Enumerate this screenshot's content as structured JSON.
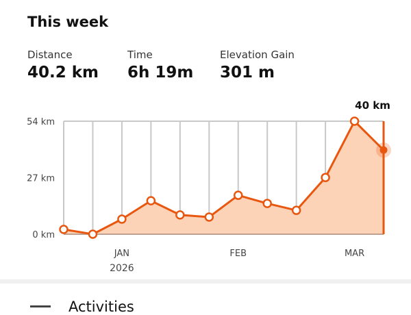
{
  "header": {
    "title": "This week"
  },
  "stats": [
    {
      "label": "Distance",
      "value": "40.2 km"
    },
    {
      "label": "Time",
      "value": "6h 19m"
    },
    {
      "label": "Elevation Gain",
      "value": "301 m"
    }
  ],
  "chart_data": {
    "type": "line",
    "y_ticks": [
      "54 km",
      "27 km",
      "0 km"
    ],
    "ylim": [
      0,
      54
    ],
    "x_labels": [
      {
        "index": 2,
        "label": "JAN",
        "sub": "2026"
      },
      {
        "index": 6,
        "label": "FEB"
      },
      {
        "index": 10,
        "label": "MAR"
      }
    ],
    "values": [
      2.3,
      0,
      7.2,
      16,
      9.2,
      8.2,
      18.6,
      14.7,
      11.4,
      27.1,
      54,
      40.2
    ],
    "selected_index": 11,
    "selected_label": "40 km",
    "colors": {
      "line": "#e8570f",
      "fill": "#fdd3b8",
      "grid": "#c8c8c8"
    }
  },
  "activities": {
    "label": "Activities"
  }
}
